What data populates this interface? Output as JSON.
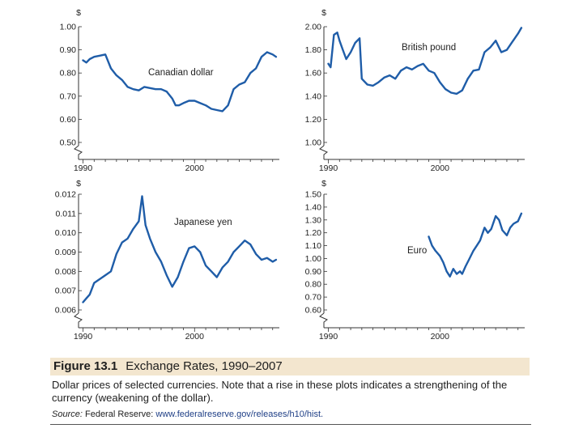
{
  "figure": {
    "number": "Figure 13.1",
    "title": "Exchange Rates, 1990–2007",
    "description": "Dollar prices of selected currencies. Note that a rise in these plots indicates a strengthening of the currency (weakening of the dollar).",
    "source_label": "Source:",
    "source_text": "Federal Reserve:",
    "source_url": "www.federalreserve.gov/releases/h10/hist."
  },
  "colors": {
    "line": "#1f5da8",
    "axis": "#333333",
    "band": "#f3e6cf"
  },
  "chart_data": [
    {
      "type": "line",
      "title": "Canadian dollar",
      "ylabel": "$",
      "yticks": [
        "1.00",
        "0.90",
        "0.80",
        "0.70",
        "0.60",
        "0.50"
      ],
      "ytick_values": [
        1.0,
        0.9,
        0.8,
        0.7,
        0.6,
        0.5
      ],
      "ylim": [
        0.5,
        1.0
      ],
      "axis_break": true,
      "xticks": [
        "1990",
        "2000"
      ],
      "xtick_values": [
        1990,
        2000
      ],
      "xlim": [
        1989.6,
        2007.6
      ],
      "x": [
        1990.0,
        1990.3,
        1990.6,
        1991.0,
        1991.5,
        1992.0,
        1992.5,
        1993.0,
        1993.5,
        1994.0,
        1994.5,
        1995.0,
        1995.5,
        1996.0,
        1996.5,
        1997.0,
        1997.5,
        1998.0,
        1998.3,
        1998.6,
        1999.0,
        1999.5,
        2000.0,
        2000.5,
        2001.0,
        2001.5,
        2002.0,
        2002.5,
        2003.0,
        2003.5,
        2004.0,
        2004.5,
        2005.0,
        2005.5,
        2006.0,
        2006.5,
        2007.0,
        2007.3
      ],
      "values": [
        0.855,
        0.845,
        0.86,
        0.87,
        0.875,
        0.88,
        0.82,
        0.79,
        0.77,
        0.74,
        0.73,
        0.725,
        0.74,
        0.735,
        0.73,
        0.73,
        0.72,
        0.69,
        0.66,
        0.66,
        0.67,
        0.68,
        0.68,
        0.67,
        0.66,
        0.645,
        0.64,
        0.635,
        0.66,
        0.73,
        0.75,
        0.76,
        0.8,
        0.82,
        0.87,
        0.89,
        0.88,
        0.87
      ]
    },
    {
      "type": "line",
      "title": "British pound",
      "ylabel": "$",
      "yticks": [
        "2.00",
        "1.80",
        "1.60",
        "1.40",
        "1.20",
        "1.00"
      ],
      "ytick_values": [
        2.0,
        1.8,
        1.6,
        1.4,
        1.2,
        1.0
      ],
      "ylim": [
        1.0,
        2.0
      ],
      "axis_break": true,
      "xticks": [
        "1990",
        "2000"
      ],
      "xtick_values": [
        1990,
        2000
      ],
      "xlim": [
        1989.6,
        2007.6
      ],
      "x": [
        1990.0,
        1990.2,
        1990.5,
        1990.8,
        1991.0,
        1991.3,
        1991.6,
        1992.0,
        1992.4,
        1992.8,
        1993.0,
        1993.5,
        1994.0,
        1994.5,
        1995.0,
        1995.5,
        1996.0,
        1996.5,
        1997.0,
        1997.5,
        1998.0,
        1998.5,
        1999.0,
        1999.5,
        2000.0,
        2000.5,
        2001.0,
        2001.5,
        2002.0,
        2002.5,
        2003.0,
        2003.5,
        2004.0,
        2004.5,
        2005.0,
        2005.5,
        2006.0,
        2006.5,
        2007.0,
        2007.3
      ],
      "values": [
        1.68,
        1.65,
        1.93,
        1.95,
        1.88,
        1.8,
        1.72,
        1.78,
        1.86,
        1.9,
        1.55,
        1.5,
        1.49,
        1.52,
        1.56,
        1.58,
        1.55,
        1.62,
        1.65,
        1.63,
        1.66,
        1.68,
        1.62,
        1.6,
        1.52,
        1.46,
        1.43,
        1.42,
        1.45,
        1.55,
        1.62,
        1.63,
        1.78,
        1.82,
        1.88,
        1.78,
        1.8,
        1.87,
        1.94,
        1.99
      ]
    },
    {
      "type": "line",
      "title": "Japanese yen",
      "ylabel": "$",
      "yticks": [
        "0.012",
        "0.011",
        "0.010",
        "0.009",
        "0.008",
        "0.007",
        "0.006"
      ],
      "ytick_values": [
        0.012,
        0.011,
        0.01,
        0.009,
        0.008,
        0.007,
        0.006
      ],
      "ylim": [
        0.006,
        0.012
      ],
      "axis_break": true,
      "xticks": [
        "1990",
        "2000"
      ],
      "xtick_values": [
        1990,
        2000
      ],
      "xlim": [
        1989.6,
        2007.6
      ],
      "x": [
        1990.0,
        1990.3,
        1990.6,
        1991.0,
        1991.5,
        1992.0,
        1992.5,
        1993.0,
        1993.5,
        1994.0,
        1994.5,
        1995.0,
        1995.3,
        1995.6,
        1996.0,
        1996.5,
        1997.0,
        1997.5,
        1998.0,
        1998.5,
        1999.0,
        1999.5,
        2000.0,
        2000.5,
        2001.0,
        2001.5,
        2002.0,
        2002.5,
        2003.0,
        2003.5,
        2004.0,
        2004.5,
        2005.0,
        2005.5,
        2006.0,
        2006.5,
        2007.0,
        2007.3
      ],
      "values": [
        0.0064,
        0.0066,
        0.0068,
        0.0074,
        0.0076,
        0.0078,
        0.008,
        0.0089,
        0.0095,
        0.0097,
        0.0102,
        0.0106,
        0.0119,
        0.0104,
        0.0097,
        0.009,
        0.0085,
        0.0078,
        0.0072,
        0.0077,
        0.0085,
        0.0092,
        0.0093,
        0.009,
        0.0083,
        0.008,
        0.0077,
        0.0082,
        0.0085,
        0.009,
        0.0093,
        0.0096,
        0.0094,
        0.0089,
        0.0086,
        0.0087,
        0.0085,
        0.0086
      ]
    },
    {
      "type": "line",
      "title": "Euro",
      "ylabel": "$",
      "yticks": [
        "1.50",
        "1.40",
        "1.30",
        "1.20",
        "1.10",
        "1.00",
        "0.90",
        "0.80",
        "0.70",
        "0.60"
      ],
      "ytick_values": [
        1.5,
        1.4,
        1.3,
        1.2,
        1.1,
        1.0,
        0.9,
        0.8,
        0.7,
        0.6
      ],
      "ylim": [
        0.6,
        1.5
      ],
      "axis_break": true,
      "xticks": [
        "1990",
        "2000"
      ],
      "xtick_values": [
        1990,
        2000
      ],
      "xlim": [
        1989.6,
        2007.6
      ],
      "x": [
        1999.0,
        1999.3,
        1999.6,
        2000.0,
        2000.3,
        2000.6,
        2000.9,
        2001.2,
        2001.5,
        2001.8,
        2002.0,
        2002.3,
        2002.6,
        2003.0,
        2003.3,
        2003.6,
        2004.0,
        2004.3,
        2004.6,
        2005.0,
        2005.3,
        2005.6,
        2006.0,
        2006.3,
        2006.6,
        2007.0,
        2007.3
      ],
      "values": [
        1.17,
        1.1,
        1.06,
        1.02,
        0.97,
        0.9,
        0.86,
        0.92,
        0.88,
        0.9,
        0.88,
        0.94,
        0.99,
        1.06,
        1.1,
        1.14,
        1.24,
        1.2,
        1.23,
        1.33,
        1.3,
        1.22,
        1.18,
        1.24,
        1.27,
        1.29,
        1.35
      ]
    }
  ]
}
